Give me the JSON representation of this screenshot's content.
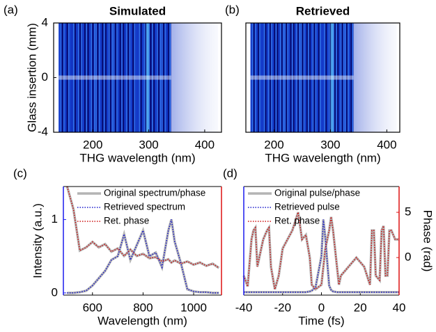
{
  "chart_data": [
    {
      "type": "heatmap",
      "label": "(a)",
      "title": "Simulated",
      "xlabel": "THG wavelength (nm)",
      "ylabel": "Glass insertion (mm)",
      "xlim": [
        130,
        430
      ],
      "xticks": [
        200,
        300,
        400
      ],
      "ylim": [
        -4,
        4
      ],
      "yticks": [
        -4,
        0,
        4
      ]
    },
    {
      "type": "heatmap",
      "label": "(b)",
      "title": "Retrieved",
      "xlabel": "THG wavelength (nm)",
      "xlim": [
        150,
        423
      ],
      "xticks": [
        200,
        300,
        400
      ],
      "ylim": [
        -4,
        4
      ]
    },
    {
      "type": "line",
      "label": "(c)",
      "xlabel": "Wavelength (nm)",
      "ylabel": "Intensity (a.u.)",
      "y_color": "#1a1aee",
      "y2_color": "#dd1111",
      "xlim": [
        485,
        1110
      ],
      "xticks": [
        600,
        800,
        1000
      ],
      "ylim": [
        -0.03,
        1.45
      ],
      "yticks": [
        0,
        1
      ],
      "y2lim": [
        0,
        10
      ],
      "x": [
        500,
        525,
        550,
        575,
        600,
        625,
        650,
        675,
        700,
        725,
        750,
        775,
        800,
        825,
        850,
        875,
        900,
        912,
        925,
        950,
        975,
        1000,
        1025,
        1050,
        1075,
        1100
      ],
      "series": [
        {
          "name": "Original spectrum/phase",
          "color": "#b4b4b4",
          "style": "solid",
          "values": [
            0,
            0,
            0.01,
            0.03,
            0.1,
            0.2,
            0.3,
            0.45,
            0.5,
            0.8,
            0.45,
            0.65,
            0.85,
            0.5,
            0.55,
            0.35,
            0.85,
            1,
            0.7,
            0.4,
            0.05,
            0.02,
            0.01,
            0.01,
            0,
            0
          ],
          "y2_values": [
            10,
            7.9,
            4.1,
            4.4,
            4.9,
            4.4,
            4.7,
            4.0,
            4.3,
            3.6,
            4.2,
            3.6,
            3.8,
            3.4,
            3.5,
            3.1,
            3.3,
            3.0,
            3.2,
            2.9,
            3.1,
            2.8,
            3.0,
            2.7,
            2.9,
            2.5
          ]
        },
        {
          "name": "Retrieved spectrum",
          "color": "#1a1acc",
          "style": "dotted",
          "values": [
            0,
            0,
            0.01,
            0.03,
            0.1,
            0.2,
            0.3,
            0.45,
            0.5,
            0.8,
            0.45,
            0.65,
            0.85,
            0.5,
            0.55,
            0.35,
            0.85,
            1,
            0.7,
            0.4,
            0.05,
            0.02,
            0.01,
            0.01,
            0,
            0
          ]
        },
        {
          "name": "Ret. phase",
          "color": "#cc1111",
          "style": "dotted",
          "axis": "y2",
          "values": [
            10,
            7.9,
            4.1,
            4.4,
            4.9,
            4.4,
            4.7,
            4.0,
            4.3,
            3.6,
            4.2,
            3.6,
            3.8,
            3.4,
            3.5,
            3.1,
            3.3,
            3.0,
            3.2,
            2.9,
            3.1,
            2.8,
            3.0,
            2.7,
            2.9,
            2.5
          ]
        }
      ]
    },
    {
      "type": "line",
      "label": "(d)",
      "xlabel": "Time (fs)",
      "y2label": "Phase (rad)",
      "y_color": "#1a1aee",
      "y2_color": "#dd1111",
      "xlim": [
        -40,
        40
      ],
      "xticks": [
        -40,
        -20,
        0,
        20,
        40
      ],
      "ylim": [
        -0.03,
        1.45
      ],
      "y2lim": [
        -4.15,
        7.85
      ],
      "y2ticks": [
        0,
        5
      ],
      "x": [
        -40,
        -38,
        -36,
        -35,
        -34,
        -33,
        -30,
        -28,
        -27,
        -26,
        -24,
        -22,
        -20,
        -15,
        -12,
        -10,
        -8,
        -6,
        -5,
        -3,
        0,
        1,
        2,
        4,
        5,
        6,
        8,
        9,
        10,
        14,
        18,
        22,
        25,
        26,
        27,
        28,
        30,
        31,
        32,
        33,
        34,
        35,
        36,
        38,
        40
      ],
      "series": [
        {
          "name": "Original pulse/phase",
          "color": "#b4b4b4",
          "style": "solid",
          "values": [
            0.01,
            0.01,
            0.01,
            0.01,
            0.01,
            0.01,
            0.01,
            0.01,
            0.01,
            0.01,
            0.01,
            0.01,
            0.01,
            0.01,
            0.01,
            0.01,
            0.01,
            0.02,
            0.03,
            0.08,
            0.5,
            1,
            0.75,
            0.1,
            0.04,
            0.02,
            0.01,
            0.01,
            0.01,
            0.01,
            0.01,
            0.01,
            0.01,
            0.01,
            0.01,
            0.01,
            0.01,
            0.01,
            0.01,
            0.01,
            0.01,
            0.01,
            0.01,
            0.01,
            0.01
          ],
          "y2_values": [
            -2,
            -3.2,
            2,
            3,
            3.3,
            -1,
            2,
            3,
            3.3,
            -1,
            -3.5,
            -2,
            1,
            3,
            5,
            2,
            2.5,
            0,
            -3,
            -3.5,
            -3,
            -1,
            1,
            3,
            4.5,
            3,
            -1,
            -3,
            -2,
            -1,
            0,
            -1,
            -3,
            3,
            3,
            -2,
            -2.5,
            3,
            3.5,
            -2,
            -2,
            3,
            3,
            2,
            2
          ]
        },
        {
          "name": "Retrieved pulse",
          "color": "#1a1acc",
          "style": "dotted",
          "values": [
            0.01,
            0.01,
            0.01,
            0.01,
            0.01,
            0.01,
            0.01,
            0.01,
            0.01,
            0.01,
            0.01,
            0.01,
            0.01,
            0.01,
            0.01,
            0.01,
            0.01,
            0.02,
            0.03,
            0.08,
            0.5,
            1,
            0.75,
            0.1,
            0.04,
            0.02,
            0.01,
            0.01,
            0.01,
            0.01,
            0.01,
            0.01,
            0.01,
            0.01,
            0.01,
            0.01,
            0.01,
            0.01,
            0.01,
            0.01,
            0.01,
            0.01,
            0.01,
            0.01,
            0.01
          ]
        },
        {
          "name": "Ret. phase",
          "color": "#cc1111",
          "style": "dotted",
          "axis": "y2",
          "values": [
            -2,
            -3.2,
            2,
            3,
            3.3,
            -1,
            2,
            3,
            3.3,
            -1,
            -3.5,
            -2,
            1,
            3,
            5,
            2,
            2.5,
            0,
            -3,
            -3.5,
            -3,
            -1,
            1,
            3,
            4.5,
            3,
            -1,
            -3,
            -2,
            -1,
            0,
            -1,
            -3,
            3,
            3,
            -2,
            -2.5,
            3,
            3.5,
            -2,
            -2,
            3,
            3,
            2,
            2
          ]
        }
      ]
    }
  ]
}
